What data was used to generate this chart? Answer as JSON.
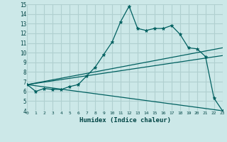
{
  "xlabel": "Humidex (Indice chaleur)",
  "bg_color": "#cce8e8",
  "grid_color": "#b0d0d0",
  "line_color": "#006060",
  "xlim": [
    0,
    23
  ],
  "ylim": [
    4,
    15
  ],
  "xticks": [
    0,
    1,
    2,
    3,
    4,
    5,
    6,
    7,
    8,
    9,
    10,
    11,
    12,
    13,
    14,
    15,
    16,
    17,
    18,
    19,
    20,
    21,
    22,
    23
  ],
  "yticks": [
    4,
    5,
    6,
    7,
    8,
    9,
    10,
    11,
    12,
    13,
    14,
    15
  ],
  "series_main": {
    "x": [
      0,
      1,
      2,
      3,
      4,
      5,
      6,
      7,
      8,
      9,
      10,
      11,
      12,
      13,
      14,
      15,
      16,
      17,
      18,
      19,
      20,
      21,
      22,
      23
    ],
    "y": [
      6.7,
      6.0,
      6.3,
      6.2,
      6.2,
      6.5,
      6.7,
      7.6,
      8.5,
      9.8,
      11.1,
      13.2,
      14.8,
      12.5,
      12.3,
      12.5,
      12.5,
      12.8,
      11.9,
      10.5,
      10.4,
      9.6,
      5.3,
      4.0
    ]
  },
  "series_lines": [
    {
      "x": [
        0,
        23
      ],
      "y": [
        6.7,
        10.5
      ]
    },
    {
      "x": [
        0,
        23
      ],
      "y": [
        6.7,
        9.7
      ]
    },
    {
      "x": [
        0,
        23
      ],
      "y": [
        6.7,
        4.0
      ]
    }
  ]
}
